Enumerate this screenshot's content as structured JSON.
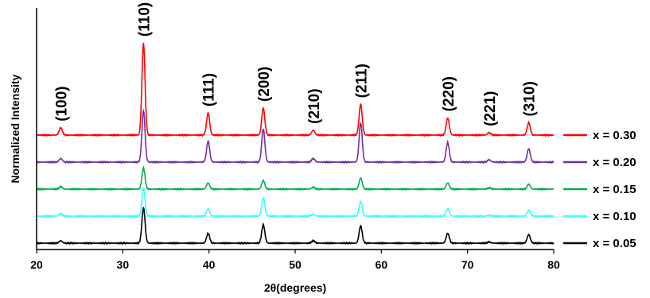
{
  "chart_data": {
    "type": "line",
    "title": "",
    "xlabel": "2θ(degrees)",
    "ylabel": "Normalized Intensity",
    "xlim": [
      20,
      80
    ],
    "xticks": [
      20,
      30,
      40,
      50,
      60,
      70,
      80
    ],
    "xtick_labels": [
      "20",
      "30",
      "40",
      "50",
      "60",
      "70",
      "80"
    ],
    "yticks_shown": false,
    "grid": false,
    "legend_position": "right",
    "peaks": [
      {
        "label": "(100)",
        "x": 22.8
      },
      {
        "label": "(110)",
        "x": 32.4
      },
      {
        "label": "(111)",
        "x": 39.9
      },
      {
        "label": "(200)",
        "x": 46.3
      },
      {
        "label": "(210)",
        "x": 52.1
      },
      {
        "label": "(211)",
        "x": 57.6
      },
      {
        "label": "(220)",
        "x": 67.7
      },
      {
        "label": "(221)",
        "x": 72.5
      },
      {
        "label": "(310)",
        "x": 77.1
      }
    ],
    "series": [
      {
        "name": "x = 0.30",
        "color": "#ff0000",
        "offset": 4.0,
        "intensities": [
          0.6,
          7.5,
          1.8,
          2.2,
          0.4,
          2.5,
          1.4,
          0.2,
          1.0
        ]
      },
      {
        "name": "x = 0.20",
        "color": "#7030a0",
        "offset": 3.0,
        "intensities": [
          0.3,
          4.2,
          1.7,
          2.7,
          0.3,
          3.2,
          1.6,
          0.2,
          1.1
        ]
      },
      {
        "name": "x = 0.15",
        "color": "#00b050",
        "offset": 2.0,
        "intensities": [
          0.2,
          1.7,
          0.5,
          0.7,
          0.15,
          0.9,
          0.5,
          0.1,
          0.4
        ]
      },
      {
        "name": "x = 0.10",
        "color": "#33ffff",
        "offset": 1.0,
        "intensities": [
          0.2,
          2.3,
          0.6,
          1.5,
          0.15,
          1.2,
          0.6,
          0.1,
          0.5
        ]
      },
      {
        "name": "x = 0.05",
        "color": "#000000",
        "offset": 0.0,
        "intensities": [
          0.2,
          2.9,
          0.8,
          1.5,
          0.2,
          1.4,
          0.8,
          0.1,
          0.7
        ]
      }
    ]
  }
}
